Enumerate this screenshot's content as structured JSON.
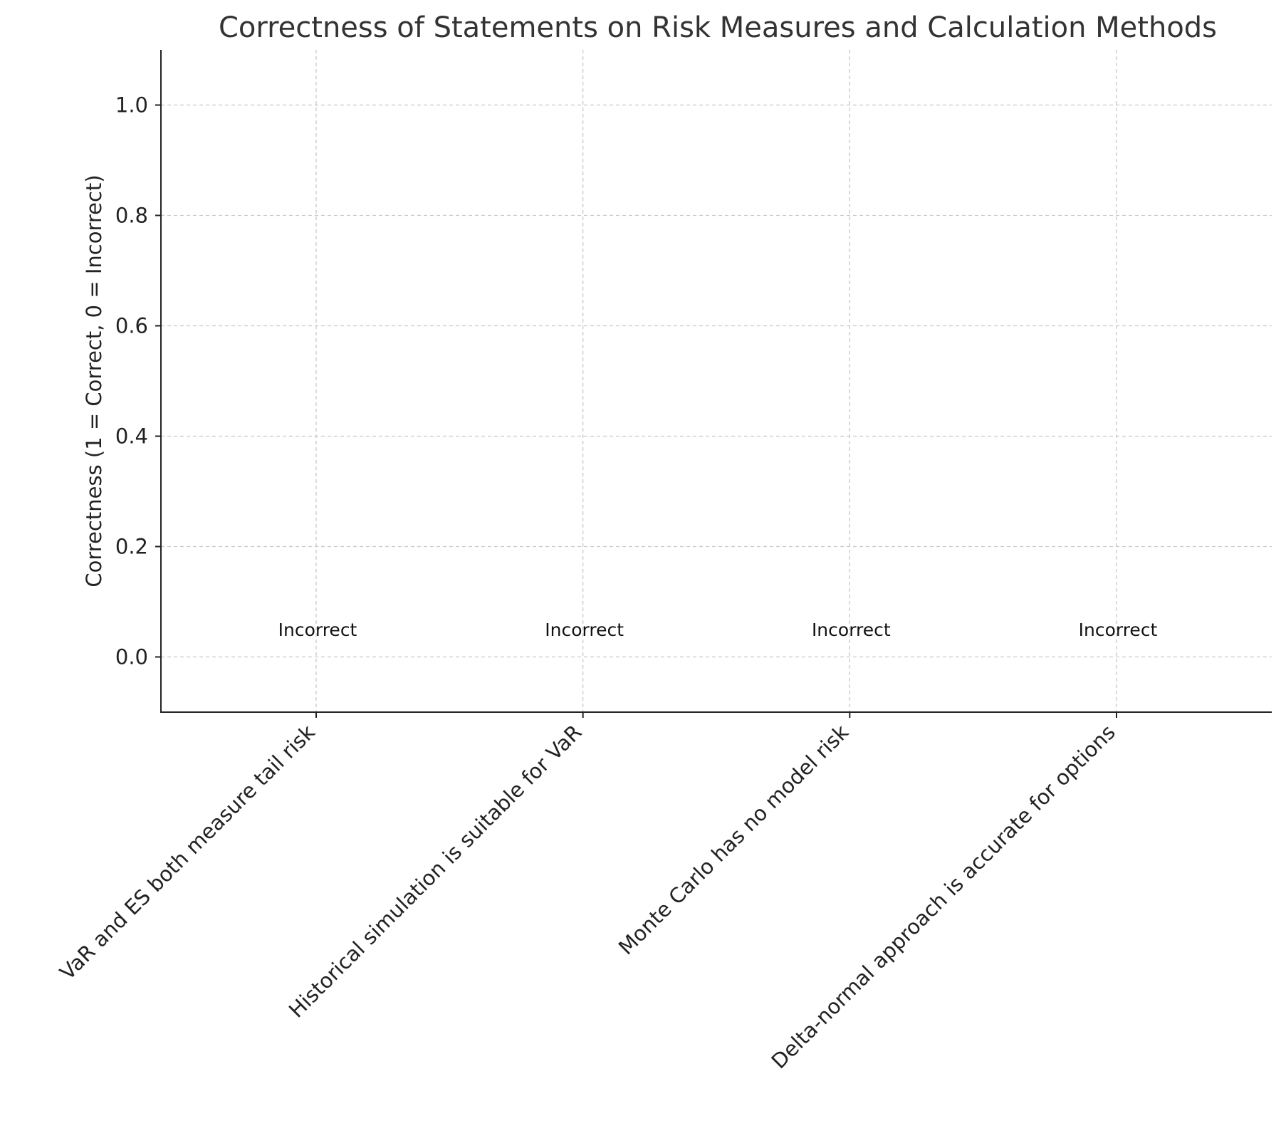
{
  "chart_data": {
    "type": "bar",
    "title": "Correctness of Statements on Risk Measures and Calculation Methods",
    "xlabel": "",
    "ylabel": "Correctness (1 = Correct, 0 = Incorrect)",
    "categories": [
      "VaR and ES both measure tail risk",
      "Historical simulation is suitable for VaR",
      "Monte Carlo has no model risk",
      "Delta-normal approach is accurate for options"
    ],
    "values": [
      0,
      0,
      0,
      0
    ],
    "data_labels": [
      "Incorrect",
      "Incorrect",
      "Incorrect",
      "Incorrect"
    ],
    "ylim": [
      -0.1,
      1.1
    ],
    "yticks": [
      "0.0",
      "0.2",
      "0.4",
      "0.6",
      "0.8",
      "1.0"
    ],
    "grid": true,
    "colors": {
      "axis": "#222222",
      "grid": "#c8c8c8",
      "text": "#333333",
      "bar": "#4caf50"
    }
  }
}
